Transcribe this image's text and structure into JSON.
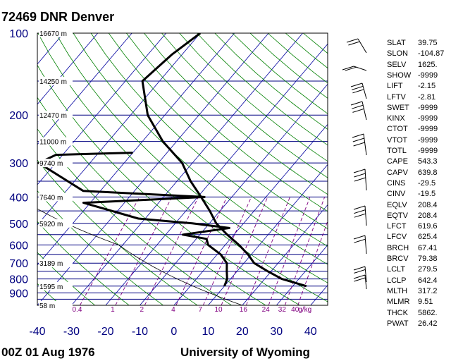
{
  "header": {
    "station": "72469 DNR Denver"
  },
  "footer": {
    "time": "00Z 01 Aug 1976",
    "source": "University of Wyoming"
  },
  "colors": {
    "isobar": "#000080",
    "isotherm": "#0000a0",
    "dry_adiabat": "#008000",
    "mixing_ratio": "#800080",
    "trace": "#000000",
    "axis_text": "#000080"
  },
  "chart_data": {
    "type": "line",
    "x_axis": {
      "label": "",
      "ticks": [
        "-40",
        "-30",
        "-20",
        "-10",
        "0",
        "10",
        "20",
        "30",
        "40"
      ],
      "range": [
        -40,
        45
      ]
    },
    "y_axis": {
      "label": "",
      "scale": "log-pressure",
      "range": [
        100,
        1000
      ],
      "ticks": [
        {
          "p": 100,
          "label": "100"
        },
        {
          "p": 200,
          "label": "200"
        },
        {
          "p": 300,
          "label": "300"
        },
        {
          "p": 400,
          "label": "400"
        },
        {
          "p": 500,
          "label": "500"
        },
        {
          "p": 600,
          "label": "600"
        },
        {
          "p": 700,
          "label": "700"
        },
        {
          "p": 800,
          "label": "800"
        },
        {
          "p": 900,
          "label": "900"
        }
      ]
    },
    "isobars": [
      100,
      150,
      200,
      250,
      300,
      350,
      400,
      450,
      500,
      550,
      600,
      650,
      700,
      750,
      800,
      850,
      900,
      950,
      1000
    ],
    "height_labels": [
      {
        "p": 100,
        "label": "16670 m"
      },
      {
        "p": 150,
        "label": "14250 m"
      },
      {
        "p": 200,
        "label": "12470 m"
      },
      {
        "p": 250,
        "label": "11000 m"
      },
      {
        "p": 300,
        "label": "9740 m"
      },
      {
        "p": 400,
        "label": "7640 m"
      },
      {
        "p": 500,
        "label": "5920 m"
      },
      {
        "p": 700,
        "label": "3189 m"
      },
      {
        "p": 850,
        "label": "1595 m"
      },
      {
        "p": 1000,
        "label": "58 m"
      }
    ],
    "mixing_ratio_labels": [
      "0.4",
      "1",
      "2",
      "4",
      "7",
      "10",
      "16",
      "24",
      "32",
      "40",
      "g/kg"
    ],
    "series": [
      {
        "name": "",
        "kind": "temperature",
        "points": [
          {
            "p": 850,
            "t": 34
          },
          {
            "p": 800,
            "t": 25
          },
          {
            "p": 750,
            "t": 19
          },
          {
            "p": 700,
            "t": 13
          },
          {
            "p": 650,
            "t": 9
          },
          {
            "p": 600,
            "t": 4
          },
          {
            "p": 550,
            "t": -2
          },
          {
            "p": 500,
            "t": -8
          },
          {
            "p": 450,
            "t": -13
          },
          {
            "p": 400,
            "t": -19
          },
          {
            "p": 350,
            "t": -26
          },
          {
            "p": 300,
            "t": -33
          },
          {
            "p": 250,
            "t": -44
          },
          {
            "p": 200,
            "t": -55
          },
          {
            "p": 150,
            "t": -65
          },
          {
            "p": 120,
            "t": -63
          },
          {
            "p": 100,
            "t": -60
          }
        ]
      },
      {
        "name": "",
        "kind": "dewpoint",
        "points": [
          {
            "p": 850,
            "t": 10
          },
          {
            "p": 800,
            "t": 9
          },
          {
            "p": 750,
            "t": 7
          },
          {
            "p": 700,
            "t": 5
          },
          {
            "p": 650,
            "t": 1
          },
          {
            "p": 600,
            "t": -5
          },
          {
            "p": 570,
            "t": -7
          },
          {
            "p": 550,
            "t": -15
          },
          {
            "p": 520,
            "t": -3
          },
          {
            "p": 500,
            "t": -15
          },
          {
            "p": 480,
            "t": -32
          },
          {
            "p": 420,
            "t": -52
          },
          {
            "p": 400,
            "t": -18
          },
          {
            "p": 380,
            "t": -55
          },
          {
            "p": 300,
            "t": -75
          },
          {
            "p": 280,
            "t": -72
          },
          {
            "p": 275,
            "t": -50
          }
        ]
      }
    ],
    "indices": [
      {
        "key": "SLAT",
        "value": "39.75"
      },
      {
        "key": "SLON",
        "value": "-104.87"
      },
      {
        "key": "SELV",
        "value": "1625."
      },
      {
        "key": "SHOW",
        "value": "-9999"
      },
      {
        "key": "LIFT",
        "value": "-2.15"
      },
      {
        "key": "LFTV",
        "value": "-2.81"
      },
      {
        "key": "SWET",
        "value": "-9999"
      },
      {
        "key": "KINX",
        "value": "-9999"
      },
      {
        "key": "CTOT",
        "value": "-9999"
      },
      {
        "key": "VTOT",
        "value": "-9999"
      },
      {
        "key": "TOTL",
        "value": "-9999"
      },
      {
        "key": "CAPE",
        "value": "543.3"
      },
      {
        "key": "CAPV",
        "value": "639.8"
      },
      {
        "key": "CINS",
        "value": "-29.5"
      },
      {
        "key": "CINV",
        "value": "-19.5"
      },
      {
        "key": "EQLV",
        "value": "208.4"
      },
      {
        "key": "EQTV",
        "value": "208.4"
      },
      {
        "key": "LFCT",
        "value": "619.6"
      },
      {
        "key": "LFCV",
        "value": "625.4"
      },
      {
        "key": "BRCH",
        "value": "67.41"
      },
      {
        "key": "BRCV",
        "value": "79.38"
      },
      {
        "key": "LCLT",
        "value": "279.5"
      },
      {
        "key": "LCLP",
        "value": "642.4"
      },
      {
        "key": "MLTH",
        "value": "317.2"
      },
      {
        "key": "MLMR",
        "value": "9.51"
      },
      {
        "key": "THCK",
        "value": "5862."
      },
      {
        "key": "PWAT",
        "value": "26.42"
      }
    ]
  }
}
